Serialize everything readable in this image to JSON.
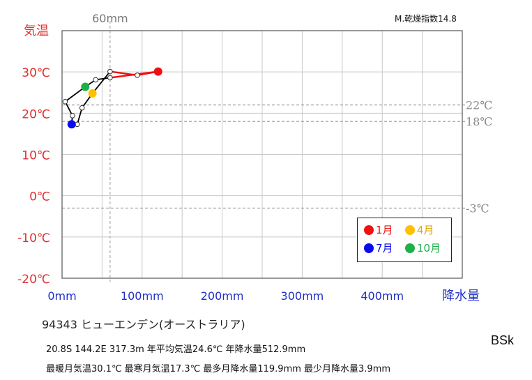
{
  "chart_data": {
    "type": "line",
    "title": "",
    "xlabel": "降水量",
    "ylabel": "気温",
    "x_ticks": [
      "0mm",
      "100mm",
      "200mm",
      "300mm",
      "400mm"
    ],
    "y_ticks": [
      "30℃",
      "20℃",
      "10℃",
      "0℃",
      "-10℃",
      "-20℃"
    ],
    "xlim": [
      0,
      500
    ],
    "ylim": [
      -20,
      40
    ],
    "grid": true,
    "reference_lines": {
      "vertical": [
        {
          "x": 60,
          "label": "60mm"
        }
      ],
      "horizontal": [
        {
          "y": 22,
          "label": "22℃"
        },
        {
          "y": 18,
          "label": "18℃"
        },
        {
          "y": -3,
          "label": "-3℃"
        }
      ]
    },
    "months": [
      {
        "month": 1,
        "precip": 120,
        "temp": 30.1
      },
      {
        "month": 2,
        "precip": 94,
        "temp": 29.2
      },
      {
        "month": 3,
        "precip": 60,
        "temp": 30.1
      },
      {
        "month": 4,
        "precip": 38,
        "temp": 24.8
      },
      {
        "month": 5,
        "precip": 25,
        "temp": 21.3
      },
      {
        "month": 6,
        "precip": 19,
        "temp": 17.3
      },
      {
        "month": 7,
        "precip": 12,
        "temp": 17.3
      },
      {
        "month": 8,
        "precip": 13,
        "temp": 19.4
      },
      {
        "month": 9,
        "precip": 3.9,
        "temp": 22.8
      },
      {
        "month": 10,
        "precip": 29,
        "temp": 26.4
      },
      {
        "month": 11,
        "precip": 42,
        "temp": 28.1
      },
      {
        "month": 12,
        "precip": 60,
        "temp": 28.6
      }
    ],
    "highlight_months": [
      1,
      4,
      7,
      10
    ],
    "segment_colors": {
      "early": "#ee1111",
      "rest": "#000000"
    },
    "legend_position": "bottom-right"
  },
  "legend": [
    {
      "label": "1月",
      "color": "#ee1111"
    },
    {
      "label": "4月",
      "color": "#ffc000"
    },
    {
      "label": "7月",
      "color": "#0a0aee"
    },
    {
      "label": "10月",
      "color": "#1db04a"
    }
  ],
  "dryness_index": "M.乾燥指数14.8",
  "station": {
    "name": "94343  ヒューエンデン(オーストラリア)",
    "info_line1": "20.8S  144.2E 317.3m  年平均気温24.6℃ 年降水量512.9mm",
    "info_line2": "最暖月気温30.1℃ 最寒月気温17.3℃ 最多月降水量119.9mm 最少月降水量3.9mm"
  },
  "climate_class": "BSk"
}
